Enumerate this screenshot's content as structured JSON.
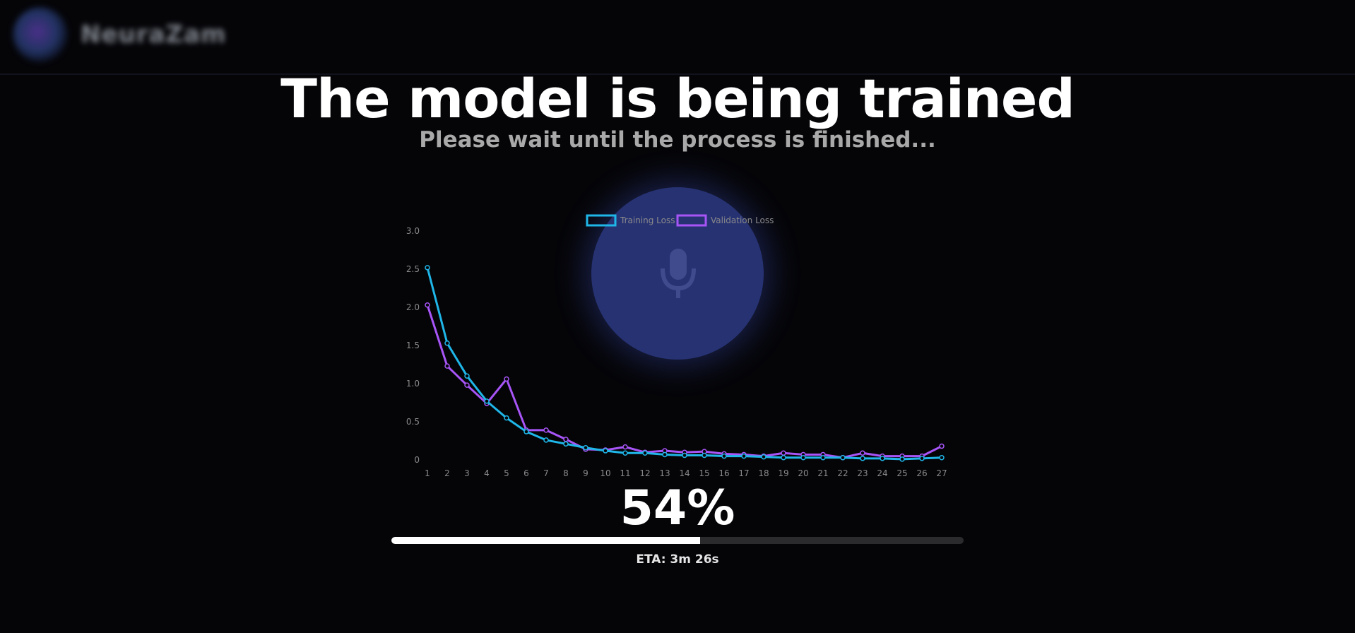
{
  "app": {
    "name": "NeuraZam"
  },
  "header": {
    "title": "The model is being trained",
    "subtitle": "Please wait until the process is finished..."
  },
  "progress": {
    "percent_label": "54%",
    "value": 0.54,
    "eta": "ETA: 3m 26s"
  },
  "colors": {
    "training": "#1fb6e8",
    "validation": "#a855f7",
    "background": "#050508"
  },
  "icons": {
    "center": "microphone-icon"
  },
  "chart_data": {
    "type": "line",
    "x": [
      1,
      2,
      3,
      4,
      5,
      6,
      7,
      8,
      9,
      10,
      11,
      12,
      13,
      14,
      15,
      16,
      17,
      18,
      19,
      20,
      21,
      22,
      23,
      24,
      25,
      26,
      27
    ],
    "y_ticks": [
      "0",
      "0.5",
      "1.0",
      "1.5",
      "2.0",
      "2.5",
      "3.0"
    ],
    "ylim": [
      0,
      3.0
    ],
    "legend_position": "top",
    "series": [
      {
        "name": "Training Loss",
        "values": [
          2.52,
          1.53,
          1.1,
          0.77,
          0.55,
          0.37,
          0.26,
          0.21,
          0.16,
          0.12,
          0.09,
          0.09,
          0.07,
          0.06,
          0.06,
          0.05,
          0.05,
          0.04,
          0.03,
          0.03,
          0.03,
          0.03,
          0.02,
          0.02,
          0.01,
          0.02,
          0.03
        ]
      },
      {
        "name": "Validation Loss",
        "values": [
          2.03,
          1.23,
          0.98,
          0.74,
          1.06,
          0.39,
          0.39,
          0.27,
          0.14,
          0.13,
          0.17,
          0.1,
          0.12,
          0.1,
          0.11,
          0.08,
          0.07,
          0.05,
          0.09,
          0.07,
          0.07,
          0.03,
          0.09,
          0.05,
          0.05,
          0.05,
          0.18
        ]
      }
    ]
  }
}
